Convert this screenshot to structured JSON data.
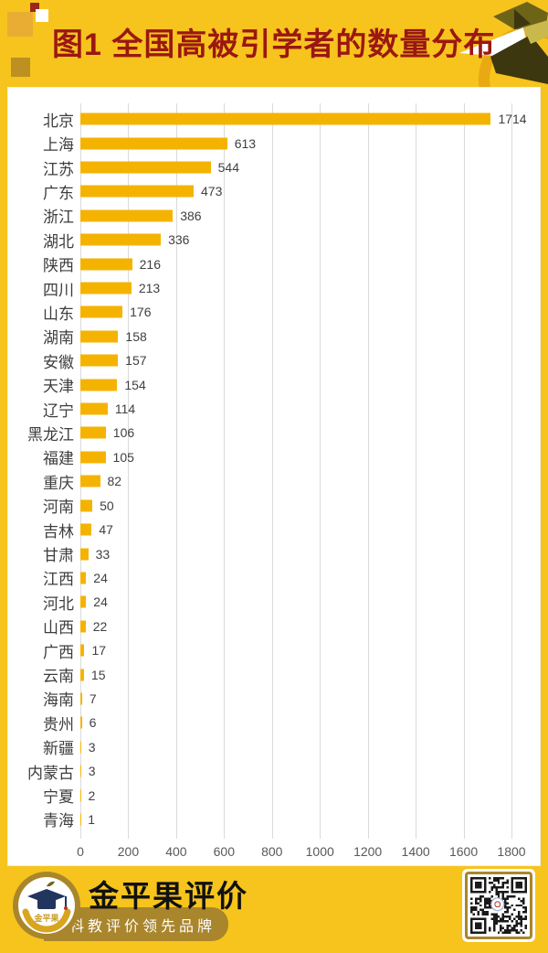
{
  "header": {
    "title": "图1 全国高被引学者的数量分布"
  },
  "chart_data": {
    "type": "bar",
    "orientation": "horizontal",
    "title": "图1 全国高被引学者的数量分布",
    "categories": [
      "北京",
      "上海",
      "江苏",
      "广东",
      "浙江",
      "湖北",
      "陕西",
      "四川",
      "山东",
      "湖南",
      "安徽",
      "天津",
      "辽宁",
      "黑龙江",
      "福建",
      "重庆",
      "河南",
      "吉林",
      "甘肃",
      "江西",
      "河北",
      "山西",
      "广西",
      "云南",
      "海南",
      "贵州",
      "新疆",
      "内蒙古",
      "宁夏",
      "青海"
    ],
    "values": [
      1714,
      613,
      544,
      473,
      386,
      336,
      216,
      213,
      176,
      158,
      157,
      154,
      114,
      106,
      105,
      82,
      50,
      47,
      33,
      24,
      24,
      22,
      17,
      15,
      7,
      6,
      3,
      3,
      2,
      1
    ],
    "xlabel": "",
    "ylabel": "",
    "xlim": [
      0,
      1800
    ],
    "x_ticks": [
      0,
      200,
      400,
      600,
      800,
      1000,
      1200,
      1400,
      1600,
      1800
    ],
    "grid": true,
    "legend": false,
    "bar_color": "#F5B301",
    "gridline_color": "#DADADA",
    "background": "#FFFFFF"
  },
  "footer": {
    "brand_name": "金平果评价",
    "brand_slogan": "科教评价领先品牌"
  },
  "colors": {
    "page_background": "#F6C41D",
    "title_text": "#9B1712",
    "badge_gold": "#A9852C",
    "bar": "#F5B301"
  }
}
